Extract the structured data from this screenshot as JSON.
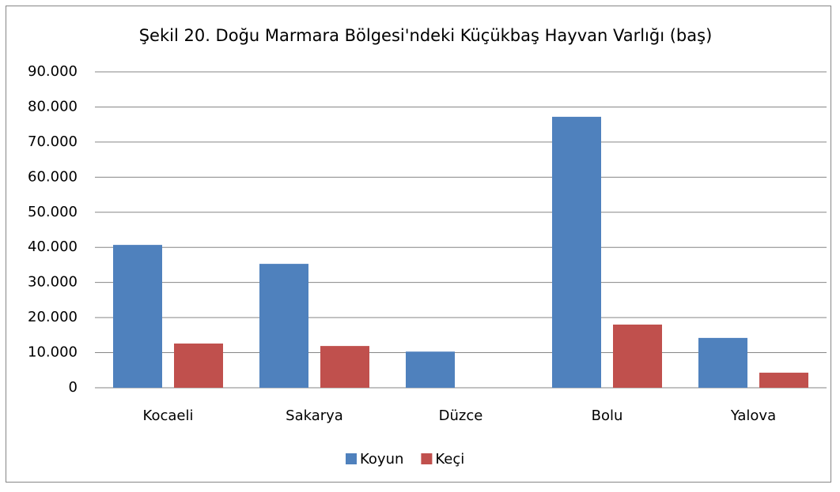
{
  "chart_data": {
    "type": "bar",
    "title": "Şekil 20. Doğu Marmara Bölgesi'ndeki Küçükbaş Hayvan Varlığı (baş)",
    "categories": [
      "Kocaeli",
      "Sakarya",
      "Düzce",
      "Bolu",
      "Yalova"
    ],
    "series": [
      {
        "name": "Koyun",
        "color": "#4f81bd",
        "values": [
          40700,
          35300,
          10300,
          77200,
          14200
        ]
      },
      {
        "name": "Keçi",
        "color": "#c0504d",
        "values": [
          12600,
          11900,
          0,
          18000,
          4300
        ]
      }
    ],
    "ylim": [
      0,
      90000
    ],
    "yticks": [
      0,
      {
        "value": 10000,
        "label": "10.000"
      },
      {
        "value": 20000,
        "label": "20.000"
      },
      {
        "value": 30000,
        "label": "30.000"
      },
      {
        "value": 40000,
        "label": "40.000"
      },
      {
        "value": 50000,
        "label": "50.000"
      },
      {
        "value": 60000,
        "label": "60.000"
      },
      {
        "value": 70000,
        "label": "70.000"
      },
      {
        "value": 80000,
        "label": "80.000"
      },
      {
        "value": 90000,
        "label": "90.000"
      }
    ],
    "grid": true,
    "legend": "bottom"
  }
}
